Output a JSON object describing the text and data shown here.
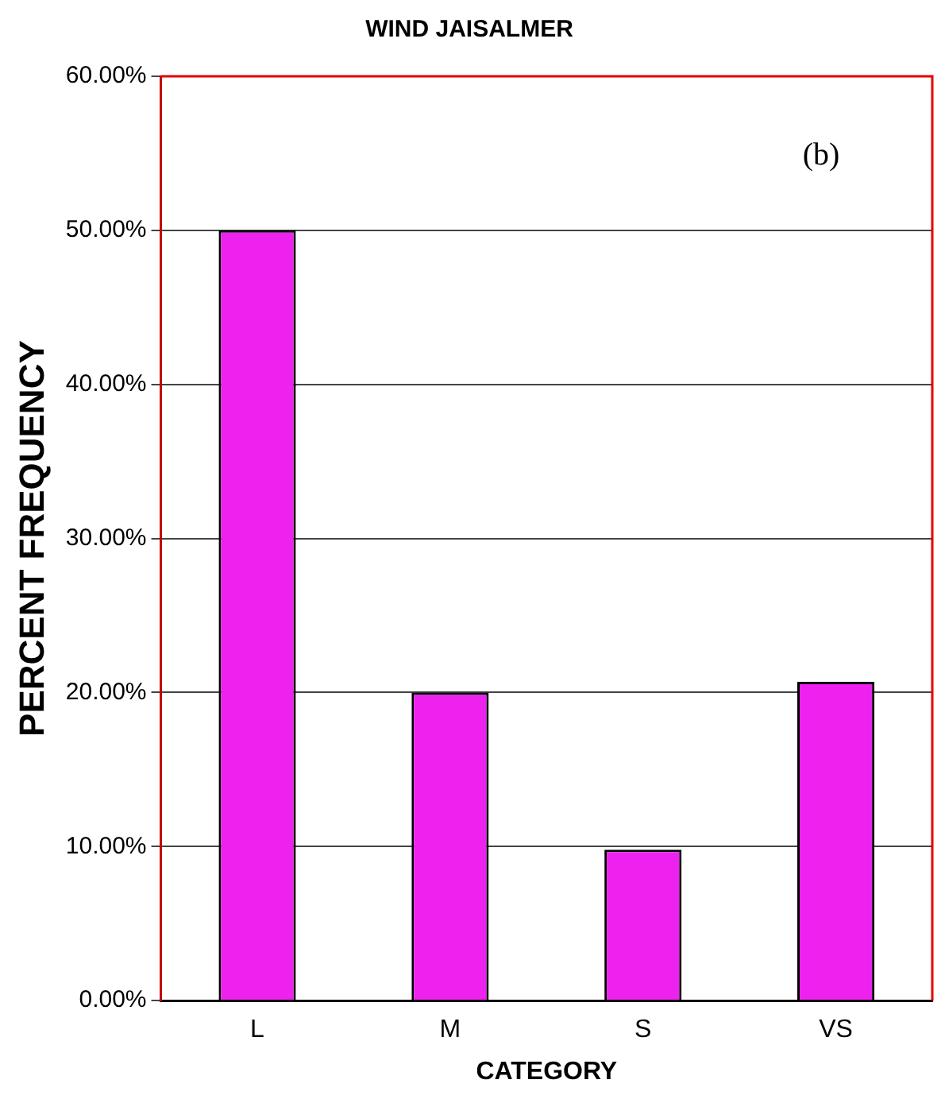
{
  "chart_data": {
    "type": "bar",
    "title": "WIND JAISALMER",
    "xlabel": "CATEGORY",
    "ylabel": "PERCENT FREQUENCY",
    "categories": [
      "L",
      "M",
      "S",
      "VS"
    ],
    "values": [
      50,
      20,
      9.8,
      20.7
    ],
    "color": "#ee22ee",
    "ylim": [
      0,
      60
    ],
    "yticks": [
      {
        "value": 0,
        "label": "0.00%"
      },
      {
        "value": 10,
        "label": "10.00%"
      },
      {
        "value": 20,
        "label": "20.00%"
      },
      {
        "value": 30,
        "label": "30.00%"
      },
      {
        "value": 40,
        "label": "40.00%"
      },
      {
        "value": 50,
        "label": "50.00%"
      },
      {
        "value": 60,
        "label": "60.00%"
      }
    ],
    "grid": "y",
    "legend": false,
    "annotations": [
      "(b)"
    ]
  }
}
